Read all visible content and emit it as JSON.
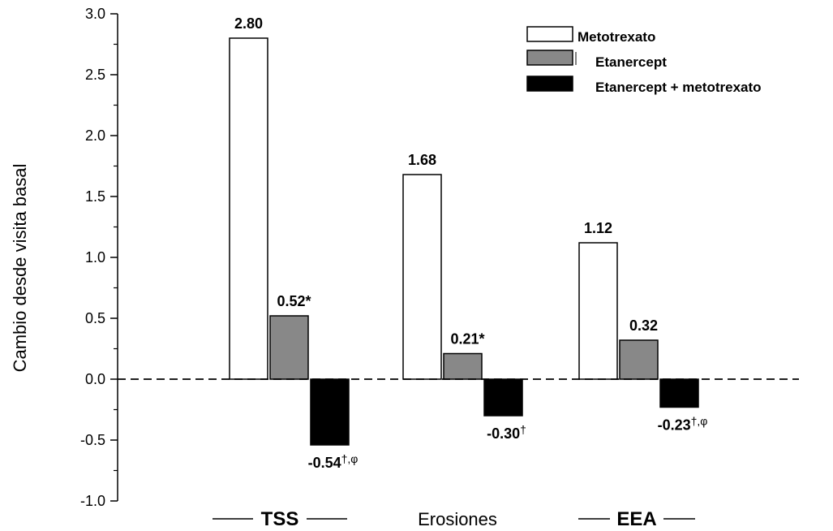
{
  "chart_data": {
    "type": "bar",
    "ylabel": "Cambio desde visita basal",
    "ylim": [
      -1.0,
      3.0
    ],
    "yticks": [
      -1.0,
      -0.5,
      0.0,
      0.5,
      1.0,
      1.5,
      2.0,
      2.5,
      3.0
    ],
    "ytick_labels": [
      "-1.0",
      "-0.5",
      "0.0",
      "0.5",
      "1.0",
      "1.5",
      "2.0",
      "2.5",
      "3.0"
    ],
    "categories": [
      "TSS",
      "Erosiones",
      "EEA"
    ],
    "category_styles": [
      "bold",
      "normal",
      "bold"
    ],
    "zero_line": "dashed",
    "legend_position": "top-right",
    "series": [
      {
        "name": "Metotrexato",
        "color": "#ffffff",
        "values": [
          2.8,
          1.68,
          1.12
        ],
        "labels": [
          "2.80",
          "1.68",
          "1.12"
        ],
        "marks": [
          "",
          "",
          ""
        ]
      },
      {
        "name": "Etanercept",
        "color": "#888888",
        "values": [
          0.52,
          0.21,
          0.32
        ],
        "labels": [
          "0.52",
          "0.21",
          "0.32"
        ],
        "marks": [
          "*",
          "*",
          ""
        ]
      },
      {
        "name": "Etanercept + metotrexato",
        "color": "#000000",
        "values": [
          -0.54,
          -0.3,
          -0.23
        ],
        "labels": [
          "-0.54",
          "-0.30",
          "-0.23"
        ],
        "marks": [
          "†,φ",
          "†",
          "†,φ"
        ]
      }
    ]
  }
}
